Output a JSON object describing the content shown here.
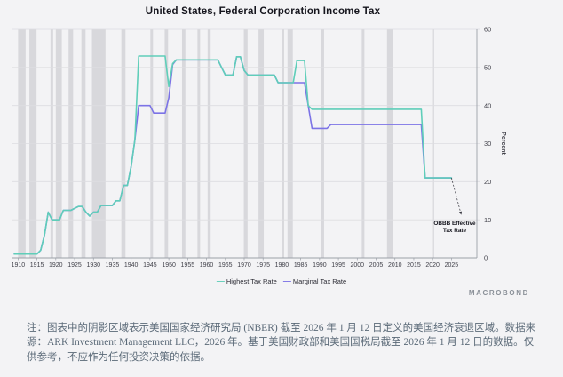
{
  "title": "United States, Federal Corporation Income Tax",
  "y_axis": {
    "label": "Percent",
    "ticks": [
      0,
      10,
      20,
      30,
      40,
      50,
      60
    ]
  },
  "x_axis": {
    "ticks": [
      1910,
      1915,
      1920,
      1925,
      1930,
      1935,
      1940,
      1945,
      1950,
      1955,
      1960,
      1965,
      1970,
      1975,
      1980,
      1985,
      1990,
      1995,
      2000,
      2005,
      2010,
      2015,
      2020,
      2025
    ]
  },
  "legend": {
    "items": [
      {
        "label": "Highest Tax Rate",
        "dash": "—",
        "color": "#5fceb9"
      },
      {
        "label": "Marginal Tax Rate",
        "dash": "—",
        "color": "#7c73e6"
      }
    ]
  },
  "annotation": {
    "line1": "OBBB Effective",
    "line2": "Tax Rate",
    "from_year": 2025,
    "from_value": 21,
    "to_year": 2027.6,
    "to_value": 11.3
  },
  "watermark": "MACROBOND",
  "note": "注：图表中的阴影区域表示美国国家经济研究局 (NBER) 截至 2026 年 1 月 12 日定义的美国经济衰退区域。数据来源：ARK Investment Management LLC，2026 年。基于美国财政部和美国国税局截至 2026 年 1 月 12 日的数据。仅供参考，不应作为任何投资决策的依据。",
  "chart_data": {
    "type": "line",
    "title": "United States, Federal Corporation Income Tax",
    "xlabel": "",
    "ylabel": "Percent",
    "x_domain": [
      1908.5,
      2027.5
    ],
    "y_domain": [
      0,
      60
    ],
    "grid": "horizontal",
    "legend_position": "bottom",
    "interpolation": "yearly-linear",
    "series": [
      {
        "name": "Marginal Tax Rate",
        "color": "#7c73e6",
        "end_year": 2025,
        "step_points": [
          [
            1909,
            1
          ],
          [
            1916,
            2
          ],
          [
            1917,
            6
          ],
          [
            1918,
            12
          ],
          [
            1919,
            10
          ],
          [
            1922,
            12.5
          ],
          [
            1925,
            13
          ],
          [
            1926,
            13.5
          ],
          [
            1928,
            12
          ],
          [
            1929,
            11
          ],
          [
            1930,
            12
          ],
          [
            1932,
            13.75
          ],
          [
            1936,
            15
          ],
          [
            1938,
            19
          ],
          [
            1940,
            24
          ],
          [
            1941,
            31
          ],
          [
            1942,
            40
          ],
          [
            1946,
            38
          ],
          [
            1950,
            42
          ],
          [
            1951,
            50.75
          ],
          [
            1952,
            52
          ],
          [
            1964,
            50
          ],
          [
            1965,
            48
          ],
          [
            1968,
            52.8
          ],
          [
            1970,
            49.2
          ],
          [
            1971,
            48
          ],
          [
            1979,
            46
          ],
          [
            1987,
            40
          ],
          [
            1988,
            34
          ],
          [
            1993,
            35
          ],
          [
            2018,
            21
          ]
        ]
      },
      {
        "name": "Highest Tax Rate",
        "color": "#5fceb9",
        "end_year": 2025,
        "step_points": [
          [
            1909,
            1
          ],
          [
            1916,
            2
          ],
          [
            1917,
            6
          ],
          [
            1918,
            12
          ],
          [
            1919,
            10
          ],
          [
            1922,
            12.5
          ],
          [
            1925,
            13
          ],
          [
            1926,
            13.5
          ],
          [
            1928,
            12
          ],
          [
            1929,
            11
          ],
          [
            1930,
            12
          ],
          [
            1932,
            13.75
          ],
          [
            1936,
            15
          ],
          [
            1938,
            19
          ],
          [
            1940,
            24
          ],
          [
            1941,
            31
          ],
          [
            1942,
            53
          ],
          [
            1950,
            45
          ],
          [
            1951,
            51
          ],
          [
            1952,
            52
          ],
          [
            1964,
            50
          ],
          [
            1965,
            48
          ],
          [
            1968,
            52.8
          ],
          [
            1970,
            49.2
          ],
          [
            1971,
            48
          ],
          [
            1979,
            46
          ],
          [
            1984,
            51.8
          ],
          [
            1987,
            40
          ],
          [
            1988,
            39
          ],
          [
            2018,
            21
          ]
        ]
      }
    ],
    "recession_shading": [
      [
        1910,
        1912
      ],
      [
        1913,
        1914.9
      ],
      [
        1918.6,
        1919.3
      ],
      [
        1920,
        1921.6
      ],
      [
        1923.4,
        1924.6
      ],
      [
        1926.8,
        1927.9
      ],
      [
        1929.6,
        1933.2
      ],
      [
        1937.4,
        1938.5
      ],
      [
        1945.1,
        1945.8
      ],
      [
        1948.9,
        1949.8
      ],
      [
        1953.5,
        1954.4
      ],
      [
        1957.6,
        1958.3
      ],
      [
        1960.3,
        1961.1
      ],
      [
        1969.9,
        1970.9
      ],
      [
        1973.8,
        1975.2
      ],
      [
        1980,
        1980.6
      ],
      [
        1981.5,
        1982.9
      ],
      [
        1990.5,
        1991.2
      ],
      [
        2001.2,
        2001.9
      ],
      [
        2007.9,
        2009.5
      ],
      [
        2020.1,
        2020.4
      ]
    ]
  },
  "colors": {
    "background": "#f3f3f5",
    "recession_band": "#d8d8dc",
    "gridline": "#dddde1",
    "axis": "#9ba0a8",
    "axis_text": "#3f3f48",
    "annotation_text": "#15151d",
    "title_text": "#15151d",
    "note_text": "#5b6a78",
    "watermark_text": "#8b9199"
  }
}
